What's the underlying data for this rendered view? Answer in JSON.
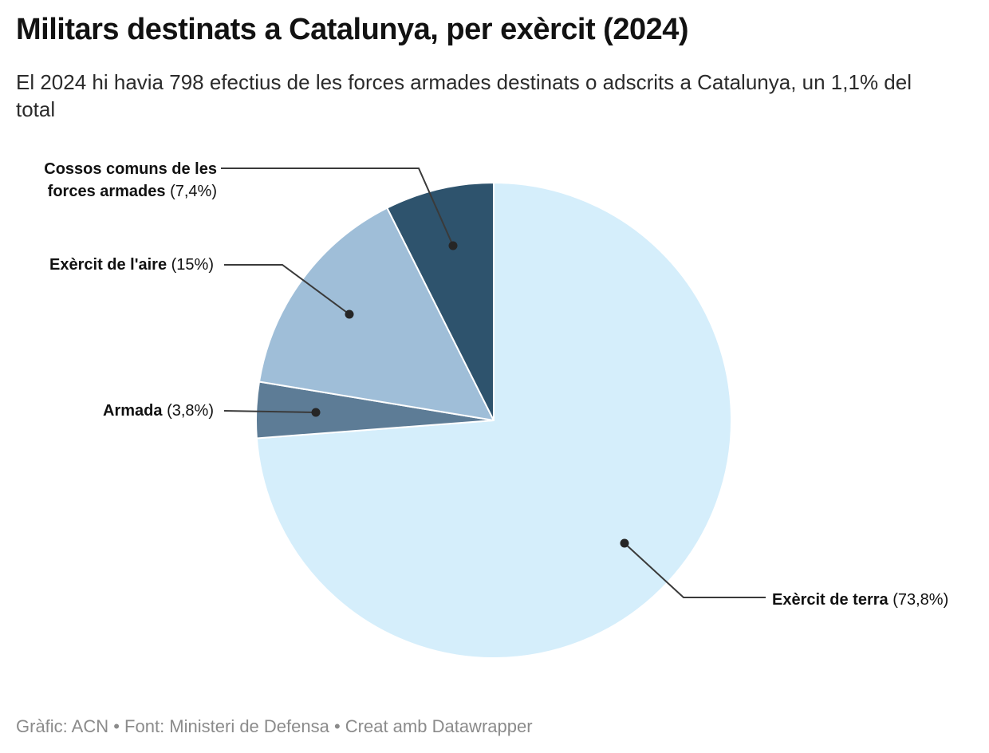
{
  "header": {
    "title": "Militars destinats a Catalunya, per exèrcit (2024)",
    "subtitle": "El 2024 hi havia 798 efectius de les forces armades destinats o adscrits a Catalunya, un 1,1% del total"
  },
  "footer": {
    "text": "Gràfic: ACN • Font: Ministeri de Defensa • Creat amb Datawrapper"
  },
  "chart_data": {
    "type": "pie",
    "title": "Militars destinats a Catalunya, per exèrcit (2024)",
    "subtitle": "El 2024 hi havia 798 efectius de les forces armades destinats o adscrits a Catalunya, un 1,1% del total",
    "total_effectius": 798,
    "units": "percent",
    "start_angle": "12-oclock",
    "direction": "clockwise",
    "legend_position": "outside-callouts-with-leader-lines",
    "slices": [
      {
        "label": "Exèrcit de terra",
        "pct_label": "(73,8%)",
        "value": 73.8,
        "color": "#d5eefb"
      },
      {
        "label": "Armada",
        "pct_label": "(3,8%)",
        "value": 3.8,
        "color": "#5d7c96"
      },
      {
        "label": "Exèrcit de l'aire",
        "pct_label": "(15%)",
        "value": 15,
        "color": "#9fbed8"
      },
      {
        "label": "Cossos comuns de les forces armades",
        "pct_label": "(7,4%)",
        "value": 7.4,
        "color": "#2e536d"
      }
    ],
    "colors": {
      "leader_line": "#3a3a3a",
      "leader_dot": "#262626",
      "slice_stroke": "#ffffff"
    }
  }
}
